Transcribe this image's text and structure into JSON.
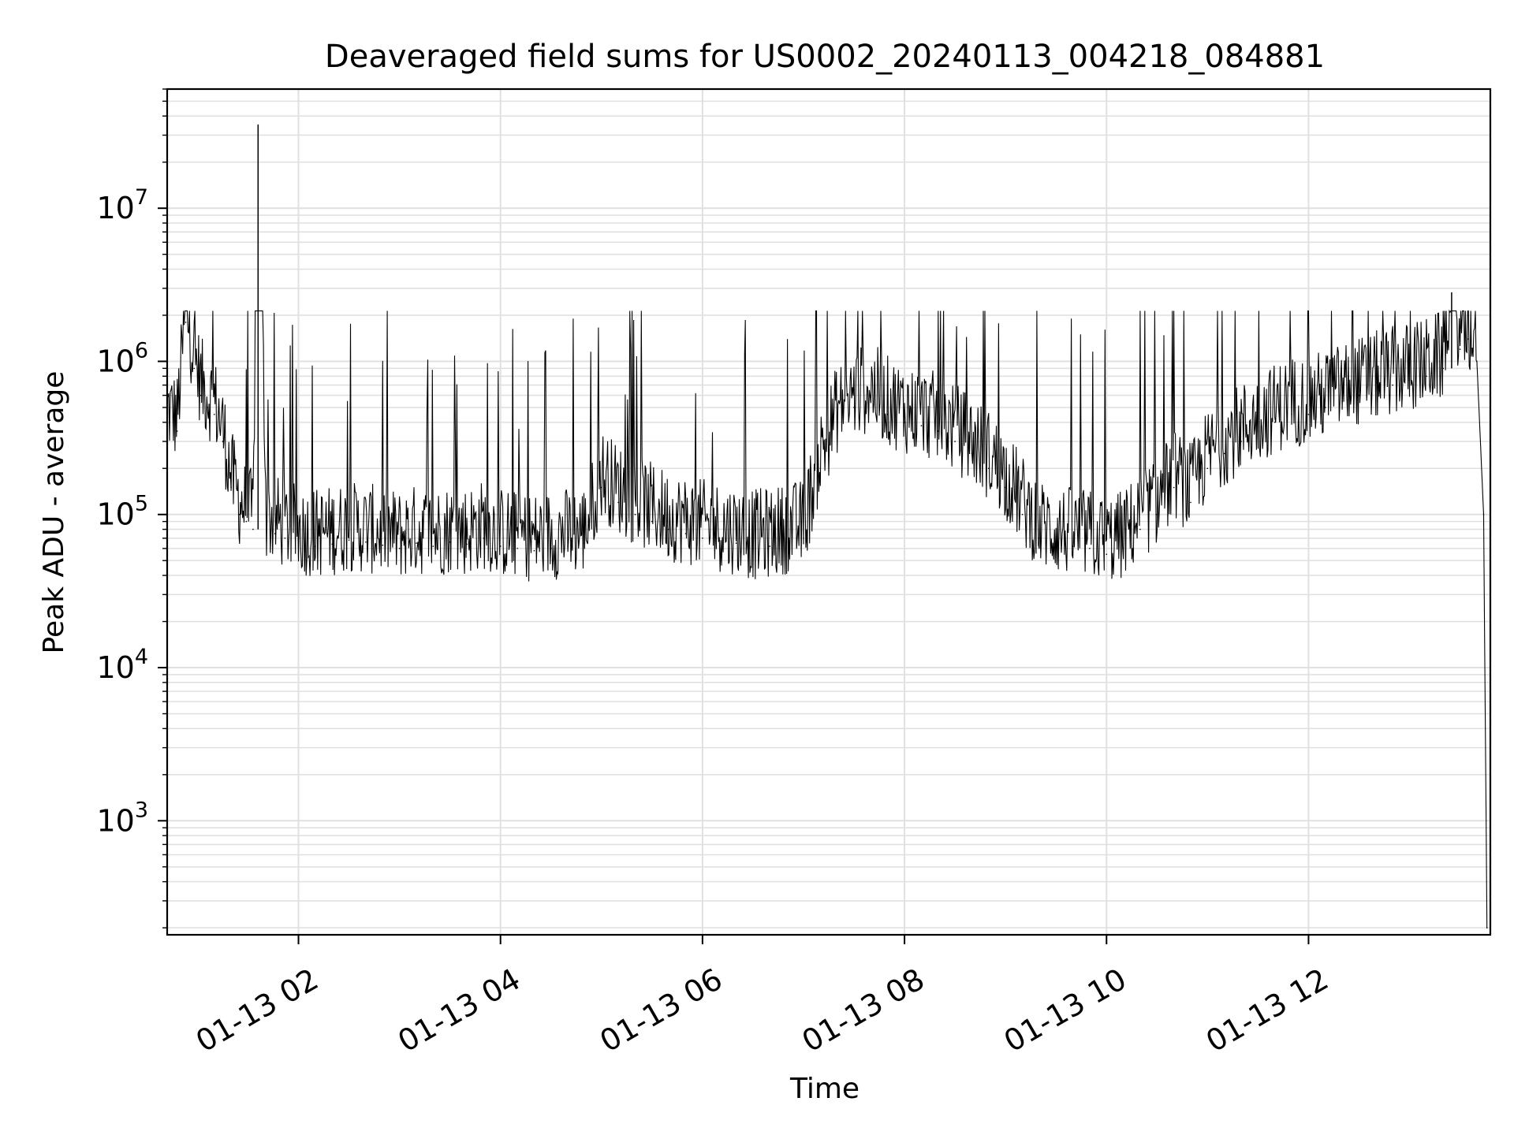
{
  "chart_data": {
    "type": "line",
    "title": "Deaveraged field sums for US0002_20240113_004218_084881",
    "xlabel": "Time",
    "ylabel": "Peak ADU - average",
    "y_scale": "log",
    "xlim": [
      "01-13 00:42",
      "01-13 13:48"
    ],
    "ylim": [
      180,
      60000000
    ],
    "x_ticks": [
      "01-13 02",
      "01-13 04",
      "01-13 06",
      "01-13 08",
      "01-13 10",
      "01-13 12"
    ],
    "y_ticks": [
      {
        "base": "10",
        "exp": "3",
        "value": 1000
      },
      {
        "base": "10",
        "exp": "4",
        "value": 10000
      },
      {
        "base": "10",
        "exp": "5",
        "value": 100000
      },
      {
        "base": "10",
        "exp": "6",
        "value": 1000000
      },
      {
        "base": "10",
        "exp": "7",
        "value": 10000000
      }
    ],
    "grid": true,
    "line_color": "#000000",
    "grid_color": "#e0e0e0",
    "series": [
      {
        "x": [
          "00:42",
          "00:48",
          "00:53",
          "00:58",
          "01:02",
          "01:06",
          "01:10",
          "01:15",
          "01:20",
          "01:25",
          "01:29",
          "01:33",
          "01:36",
          "01:41",
          "01:46",
          "01:52",
          "02:00",
          "02:10",
          "02:20",
          "02:30",
          "02:40",
          "02:50",
          "03:00",
          "03:10",
          "03:20",
          "03:30",
          "03:40",
          "03:50",
          "04:00",
          "04:10",
          "04:20",
          "04:30",
          "04:40",
          "04:50",
          "05:00",
          "05:10",
          "05:20",
          "05:30",
          "05:40",
          "05:50",
          "06:00",
          "06:10",
          "06:20",
          "06:30",
          "06:40",
          "06:50",
          "07:00",
          "07:10",
          "07:20",
          "07:30",
          "07:40",
          "07:50",
          "08:00",
          "08:10",
          "08:20",
          "08:30",
          "08:40",
          "08:50",
          "09:00",
          "09:10",
          "09:20",
          "09:30",
          "09:40",
          "09:50",
          "10:00",
          "10:10",
          "10:20",
          "10:30",
          "10:40",
          "10:50",
          "11:00",
          "11:10",
          "11:20",
          "11:30",
          "11:40",
          "11:50",
          "12:00",
          "12:10",
          "12:20",
          "12:30",
          "12:40",
          "12:50",
          "13:00",
          "13:10",
          "13:20",
          "13:25",
          "13:30",
          "13:35",
          "13:40",
          "13:44",
          "13:46"
        ],
        "values": [
          400000,
          350000,
          1800000,
          900000,
          600000,
          500000,
          450000,
          300000,
          150000,
          100000,
          90000,
          80000,
          35000000,
          80000,
          75000,
          70000,
          65000,
          62000,
          64000,
          68000,
          66000,
          63000,
          60000,
          65000,
          62000,
          66000,
          64000,
          70000,
          62000,
          60000,
          58000,
          60000,
          62000,
          65000,
          150000,
          120000,
          100000,
          90000,
          80000,
          75000,
          70000,
          68000,
          65000,
          60000,
          62000,
          66000,
          70000,
          200000,
          400000,
          500000,
          550000,
          450000,
          400000,
          380000,
          350000,
          300000,
          250000,
          200000,
          150000,
          100000,
          70000,
          65000,
          62000,
          60000,
          55000,
          60000,
          80000,
          100000,
          150000,
          120000,
          200000,
          250000,
          300000,
          350000,
          400000,
          450000,
          450000,
          500000,
          550000,
          600000,
          650000,
          700000,
          750000,
          800000,
          900000,
          2800000,
          1200000,
          1400000,
          1000000,
          100000,
          200
        ]
      }
    ]
  }
}
